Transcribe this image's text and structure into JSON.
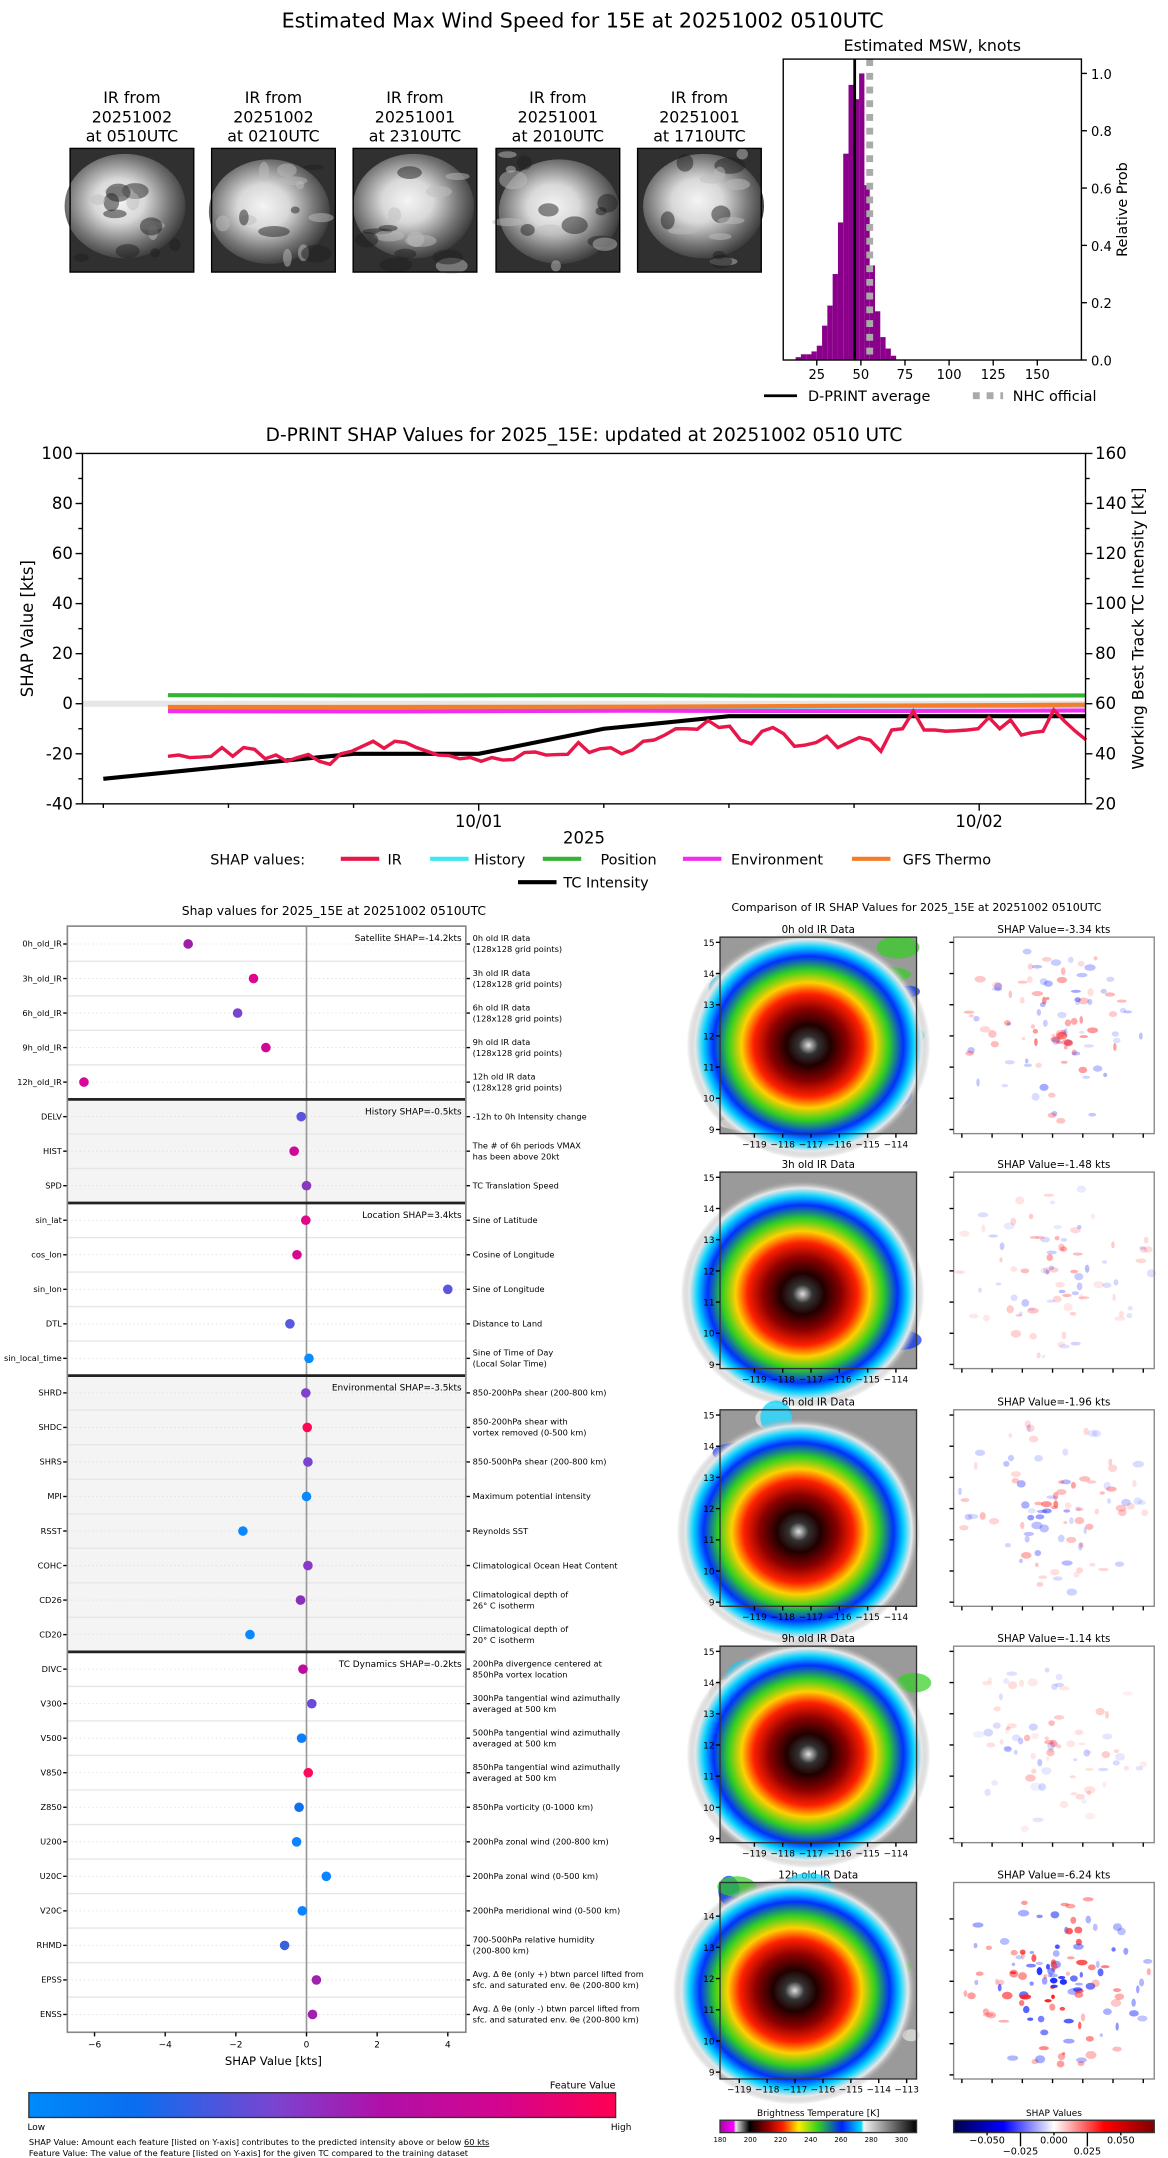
{
  "title": "Estimated Max Wind Speed for 15E at 20251002 0510UTC",
  "thumbnails": [
    {
      "line1": "IR from",
      "line2": "20251002",
      "line3": "at 0510UTC"
    },
    {
      "line1": "IR from",
      "line2": "20251002",
      "line3": "at 0210UTC"
    },
    {
      "line1": "IR from",
      "line2": "20251001",
      "line3": "at 2310UTC"
    },
    {
      "line1": "IR from",
      "line2": "20251001",
      "line3": "at 2010UTC"
    },
    {
      "line1": "IR from",
      "line2": "20251001",
      "line3": "at 1710UTC"
    }
  ],
  "chart_data": [
    {
      "type": "bar",
      "title": "Estimated MSW, knots",
      "ylabel": "Relative Prob",
      "xlim": [
        6,
        175
      ],
      "ylim": [
        0,
        1.05
      ],
      "xticks": [
        25,
        50,
        75,
        100,
        125,
        150
      ],
      "yticks": [
        0.0,
        0.2,
        0.4,
        0.6,
        0.8,
        1.0
      ],
      "bin_width": 3,
      "bins": [
        13,
        16,
        19,
        22,
        25,
        28,
        31,
        34,
        37,
        40,
        43,
        46,
        49,
        52,
        55,
        58,
        61,
        64,
        67
      ],
      "values": [
        0.01,
        0.02,
        0.02,
        0.03,
        0.05,
        0.12,
        0.19,
        0.3,
        0.48,
        0.72,
        0.96,
        0.91,
        1.0,
        0.61,
        0.33,
        0.17,
        0.08,
        0.04,
        0.015
      ],
      "bar_color": "#8b008b",
      "dprint_average": 46.5,
      "nhc_official": 55,
      "legend": {
        "dprint": "D-PRINT average",
        "nhc": "NHC official"
      }
    },
    {
      "type": "line",
      "title": "D-PRINT SHAP Values for 2025_15E: updated at 20251002 0510 UTC",
      "ylabel": "SHAP Value [kts]",
      "y2label": "Working Best Track TC Intensity [kt]",
      "xlabel": "2025",
      "xlim": [
        5.0,
        53.1
      ],
      "ylim": [
        -40,
        100
      ],
      "y2lim": [
        20,
        160
      ],
      "yticks": [
        -40,
        -20,
        0,
        20,
        40,
        60,
        80,
        100
      ],
      "y2ticks": [
        20,
        40,
        60,
        80,
        100,
        120,
        140,
        160
      ],
      "xticks": [
        {
          "x": 24,
          "label": "10/01"
        },
        {
          "x": 48,
          "label": "10/02"
        }
      ],
      "legend_title": "SHAP values:",
      "series": [
        {
          "name": "IR",
          "color": "#e8174a",
          "x_start": 9.1,
          "x_step": 0.518,
          "values": [
            -21,
            -20.5,
            -21.5,
            -21.3,
            -21,
            -17.5,
            -21,
            -17.5,
            -18.2,
            -22,
            -20.5,
            -23,
            -21.5,
            -20.3,
            -23,
            -24.2,
            -20,
            -19,
            -17,
            -15,
            -17.8,
            -15,
            -15.5,
            -17.5,
            -19,
            -20.5,
            -20.7,
            -22,
            -21.5,
            -23,
            -21.5,
            -22.5,
            -22.3,
            -19.5,
            -19.3,
            -20.5,
            -20.3,
            -20.2,
            -15.5,
            -19.5,
            -18,
            -17.6,
            -20,
            -18.5,
            -15,
            -14.5,
            -12.5,
            -10,
            -10,
            -10.2,
            -6.7,
            -9.5,
            -9,
            -14.5,
            -16,
            -11,
            -9.5,
            -12,
            -17,
            -16.5,
            -15.5,
            -13,
            -17.5,
            -15.5,
            -13.5,
            -14.5,
            -19,
            -10.5,
            -10,
            -3,
            -10.5,
            -10.5,
            -11,
            -10.8,
            -10.5,
            -10,
            -5.5,
            -10,
            -6.5,
            -12.5,
            -11.5,
            -11,
            -2.5,
            -7,
            -11,
            -14.5
          ]
        },
        {
          "name": "History",
          "color": "#3ee8f0",
          "x_start": 9.1,
          "x_step": 11,
          "values": [
            -1.9,
            -1.8,
            -1.5,
            -1.1,
            -0.8
          ]
        },
        {
          "name": "Position",
          "color": "#33b533",
          "x_start": 9.1,
          "x_step": 11,
          "values": [
            3.4,
            3.3,
            3.4,
            3.2,
            3.3
          ]
        },
        {
          "name": "Environment",
          "color": "#f02ef0",
          "x_start": 9.1,
          "x_step": 11,
          "values": [
            -3.0,
            -3.1,
            -2.8,
            -2.9,
            -2.7
          ]
        },
        {
          "name": "GFS Thermo",
          "color": "#f57d2a",
          "x_start": 9.1,
          "x_step": 11,
          "values": [
            -1.3,
            -1.3,
            -1.2,
            -0.8,
            -0.4
          ]
        }
      ],
      "intensity": {
        "name": "TC Intensity",
        "color": "#000000",
        "x": [
          6,
          12,
          18,
          24,
          30,
          36,
          42,
          48,
          53.1
        ],
        "values": [
          30,
          35,
          40,
          40,
          50,
          55,
          55,
          55,
          55
        ]
      }
    },
    {
      "type": "scatter",
      "title": "Shap values for 2025_15E at 20251002 0510UTC",
      "xlabel": "SHAP Value [kts]",
      "xlim": [
        -6.77,
        4.51
      ],
      "xticks": [
        -6,
        -4,
        -2,
        0,
        2,
        4
      ],
      "groups": [
        {
          "label": "Satellite SHAP=-14.2kts",
          "shaded": false,
          "features": [
            {
              "name": "0h_old_IR",
              "value": -3.35,
              "color": "#9b1fa8",
              "desc": [
                "0h old IR data",
                "(128x128 grid points)"
              ]
            },
            {
              "name": "3h_old_IR",
              "value": -1.5,
              "color": "#e0058f",
              "desc": [
                "3h old IR data",
                "(128x128 grid points)"
              ]
            },
            {
              "name": "6h_old_IR",
              "value": -1.95,
              "color": "#7a44d0",
              "desc": [
                "6h old IR data",
                "(128x128 grid points)"
              ]
            },
            {
              "name": "9h_old_IR",
              "value": -1.15,
              "color": "#d0089a",
              "desc": [
                "9h old IR data",
                "(128x128 grid points)"
              ]
            },
            {
              "name": "12h_old_IR",
              "value": -6.3,
              "color": "#d8069a",
              "desc": [
                "12h old IR data",
                "(128x128 grid points)"
              ]
            }
          ]
        },
        {
          "label": "History SHAP=-0.5kts",
          "shaded": true,
          "features": [
            {
              "name": "DELV",
              "value": -0.15,
              "color": "#5a55e0",
              "desc": [
                "-12h to 0h Intensity change"
              ]
            },
            {
              "name": "HIST",
              "value": -0.35,
              "color": "#d0059a",
              "desc": [
                "The # of 6h periods VMAX",
                "has been above 20kt"
              ]
            },
            {
              "name": "SPD",
              "value": 0.0,
              "color": "#8a38c0",
              "desc": [
                "TC Translation Speed"
              ]
            }
          ]
        },
        {
          "label": "Location SHAP=3.4kts",
          "shaded": false,
          "features": [
            {
              "name": "sin_lat",
              "value": -0.02,
              "color": "#e0058a",
              "desc": [
                "Sine of Latitude"
              ]
            },
            {
              "name": "cos_lon",
              "value": -0.27,
              "color": "#d8078f",
              "desc": [
                "Cosine of Longitude"
              ]
            },
            {
              "name": "sin_lon",
              "value": 4.0,
              "color": "#5c55e0",
              "desc": [
                "Sine of Longitude"
              ]
            },
            {
              "name": "DTL",
              "value": -0.47,
              "color": "#5858e0",
              "desc": [
                "Distance to Land"
              ]
            },
            {
              "name": "sin_local_time",
              "value": 0.07,
              "color": "#0a8cff",
              "desc": [
                "Sine of Time of Day",
                "(Local Solar Time)"
              ]
            }
          ]
        },
        {
          "label": "Environmental SHAP=-3.5kts",
          "shaded": true,
          "features": [
            {
              "name": "SHRD",
              "value": -0.02,
              "color": "#8040d0",
              "desc": [
                "850-200hPa shear (200-800 km)"
              ]
            },
            {
              "name": "SHDC",
              "value": 0.02,
              "color": "#ff0655",
              "desc": [
                "850-200hPa shear with",
                "vortex removed (0-500 km)"
              ]
            },
            {
              "name": "SHRS",
              "value": 0.04,
              "color": "#7a44d0",
              "desc": [
                "850-500hPa shear (200-800 km)"
              ]
            },
            {
              "name": "MPI",
              "value": 0.0,
              "color": "#0a88ff",
              "desc": [
                "Maximum potential intensity"
              ]
            },
            {
              "name": "RSST",
              "value": -1.8,
              "color": "#0a88ff",
              "desc": [
                "Reynolds SST"
              ]
            },
            {
              "name": "COHC",
              "value": 0.04,
              "color": "#8a38c8",
              "desc": [
                "Climatological Ocean Heat Content"
              ]
            },
            {
              "name": "CD26",
              "value": -0.17,
              "color": "#8a30b8",
              "desc": [
                "Climatological depth of",
                "26° C isotherm"
              ]
            },
            {
              "name": "CD20",
              "value": -1.6,
              "color": "#0a88ff",
              "desc": [
                "Climatological depth of",
                "20° C isotherm"
              ]
            }
          ]
        },
        {
          "label": "TC Dynamics SHAP=-0.2kts",
          "shaded": false,
          "features": [
            {
              "name": "DIVC",
              "value": -0.1,
              "color": "#c00a9e",
              "desc": [
                "200hPa divergence centered at",
                "850hPa vortex location"
              ]
            },
            {
              "name": "V300",
              "value": 0.15,
              "color": "#6a48d8",
              "desc": [
                "300hPa tangential wind azimuthally",
                "averaged at 500 km"
              ]
            },
            {
              "name": "V500",
              "value": -0.14,
              "color": "#0a7eff",
              "desc": [
                "500hPa tangential wind azimuthally",
                "averaged at 500 km"
              ]
            },
            {
              "name": "V850",
              "value": 0.05,
              "color": "#ff0a5a",
              "desc": [
                "850hPa tangential wind azimuthally",
                "averaged at 500 km"
              ]
            },
            {
              "name": "Z850",
              "value": -0.21,
              "color": "#1070f0",
              "desc": [
                "850hPa vorticity (0-1000 km)"
              ]
            },
            {
              "name": "U200",
              "value": -0.28,
              "color": "#0a84ff",
              "desc": [
                "200hPa zonal wind (200-800 km)"
              ]
            },
            {
              "name": "U20C",
              "value": 0.56,
              "color": "#0a84ff",
              "desc": [
                "200hPa zonal wind (0-500 km)"
              ]
            },
            {
              "name": "V20C",
              "value": -0.12,
              "color": "#0a84ff",
              "desc": [
                "200hPa meridional wind (0-500 km)"
              ]
            },
            {
              "name": "RHMD",
              "value": -0.62,
              "color": "#3a60e0",
              "desc": [
                "700-500hPa relative humidity",
                "(200-800 km)"
              ]
            },
            {
              "name": "EPSS",
              "value": 0.28,
              "color": "#a020b0",
              "desc": [
                "Avg. Δ θe (only +) btwn parcel lifted from",
                "sfc. and saturated env. θe (200-800 km)"
              ]
            },
            {
              "name": "ENSS",
              "value": 0.17,
              "color": "#a020b0",
              "desc": [
                "Avg. Δ θe (only -) btwn parcel lifted from",
                "sfc. and saturated env. θe (200-800 km)"
              ]
            }
          ]
        }
      ]
    }
  ],
  "feature_colorbar": {
    "title": "Feature Value",
    "low": "Low",
    "high": "High",
    "colors": [
      "#008bfb",
      "#0a6ef0",
      "#7a44d0",
      "#b010a8",
      "#d3058f",
      "#ff0052"
    ]
  },
  "footnotes": {
    "shap_prefix": "SHAP Value: Amount each feature [listed on Y-axis] contributes to the predicted intensity above or below ",
    "shap_threshold": "60 kts",
    "feature": "Feature Value: The value of the feature [listed on Y-axis] for the given TC compared to the training dataset"
  },
  "ir_comparison": {
    "title": "Comparison of IR SHAP Values for 2025_15E at 20251002 0510UTC",
    "rows": [
      {
        "ir_title": "0h old IR Data",
        "shap_title": "SHAP Value=-3.34 kts",
        "lat_ticks": [
          9,
          10,
          11,
          12,
          13,
          14,
          15
        ],
        "lon_ticks": [
          "−119",
          "−118",
          "−117",
          "−116",
          "−115",
          "−114"
        ],
        "intensity": 1.0
      },
      {
        "ir_title": "3h old IR Data",
        "shap_title": "SHAP Value=-1.48 kts",
        "lat_ticks": [
          9,
          10,
          11,
          12,
          13,
          14,
          15
        ],
        "lon_ticks": [
          "−119",
          "−118",
          "−117",
          "−116",
          "−115",
          "−114"
        ],
        "intensity": 0.6
      },
      {
        "ir_title": "6h old IR Data",
        "shap_title": "SHAP Value=-1.96 kts",
        "lat_ticks": [
          9,
          10,
          11,
          12,
          13,
          14,
          15
        ],
        "lon_ticks": [
          "−119",
          "−118",
          "−117",
          "−116",
          "−115",
          "−114"
        ],
        "intensity": 0.8
      },
      {
        "ir_title": "9h old IR Data",
        "shap_title": "SHAP Value=-1.14 kts",
        "lat_ticks": [
          9,
          10,
          11,
          12,
          13,
          14,
          15
        ],
        "lon_ticks": [
          "−119",
          "−118",
          "−117",
          "−116",
          "−115",
          "−114"
        ],
        "intensity": 0.5
      },
      {
        "ir_title": "12h old IR Data",
        "shap_title": "SHAP Value=-6.24 kts",
        "lat_ticks": [
          9,
          10,
          11,
          12,
          13,
          14
        ],
        "lon_ticks": [
          "−119",
          "−118",
          "−117",
          "−116",
          "−115",
          "−114",
          "−113"
        ],
        "intensity": 1.6
      }
    ],
    "bt_colorbar": {
      "title": "Brightness Temperature [K]",
      "range": [
        180,
        310
      ],
      "ticks": [
        180,
        200,
        220,
        240,
        260,
        280,
        300
      ]
    },
    "shap_colorbar": {
      "title": "SHAP Values",
      "range": [
        -0.075,
        0.075
      ],
      "ticks": [
        "−0.050",
        "−0.025",
        "0.000",
        "0.025",
        "0.050"
      ],
      "tick_values": [
        -0.05,
        -0.025,
        0,
        0.025,
        0.05
      ]
    }
  }
}
